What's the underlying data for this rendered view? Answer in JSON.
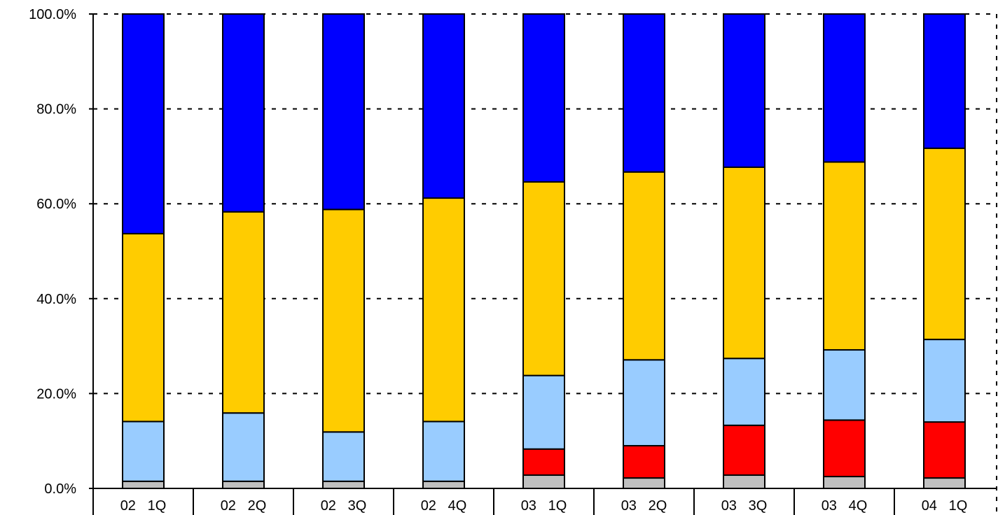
{
  "chart_data": {
    "type": "bar",
    "stacked": true,
    "percent_stacked": true,
    "categories": [
      "02   1Q",
      "02   2Q",
      "02   3Q",
      "02   4Q",
      "03   1Q",
      "03   2Q",
      "03   3Q",
      "03   4Q",
      "04   1Q"
    ],
    "series": [
      {
        "color": "#c0c0c0",
        "values": [
          1.5,
          1.5,
          1.5,
          1.5,
          2.8,
          2.2,
          2.8,
          2.5,
          2.2
        ]
      },
      {
        "color": "#ff0000",
        "values": [
          0,
          0,
          0,
          0,
          5.5,
          6.8,
          10.5,
          11.9,
          11.8
        ]
      },
      {
        "color": "#99ccff",
        "values": [
          12.6,
          14.4,
          10.4,
          12.6,
          15.5,
          18.1,
          14.1,
          14.8,
          17.4
        ]
      },
      {
        "color": "#ffcc00",
        "values": [
          39.6,
          42.4,
          46.9,
          47.1,
          40.8,
          39.6,
          40.3,
          39.6,
          40.3
        ]
      },
      {
        "color": "#0000ff",
        "values": [
          46.3,
          41.7,
          41.2,
          38.8,
          35.4,
          33.3,
          32.3,
          31.2,
          28.3
        ]
      }
    ],
    "yticks": [
      "0.0%",
      "20.0%",
      "40.0%",
      "60.0%",
      "80.0%",
      "100.0%"
    ],
    "ylim": [
      0,
      100
    ],
    "grid": "horizontal-dashed",
    "title": "",
    "xlabel": "",
    "ylabel": ""
  }
}
